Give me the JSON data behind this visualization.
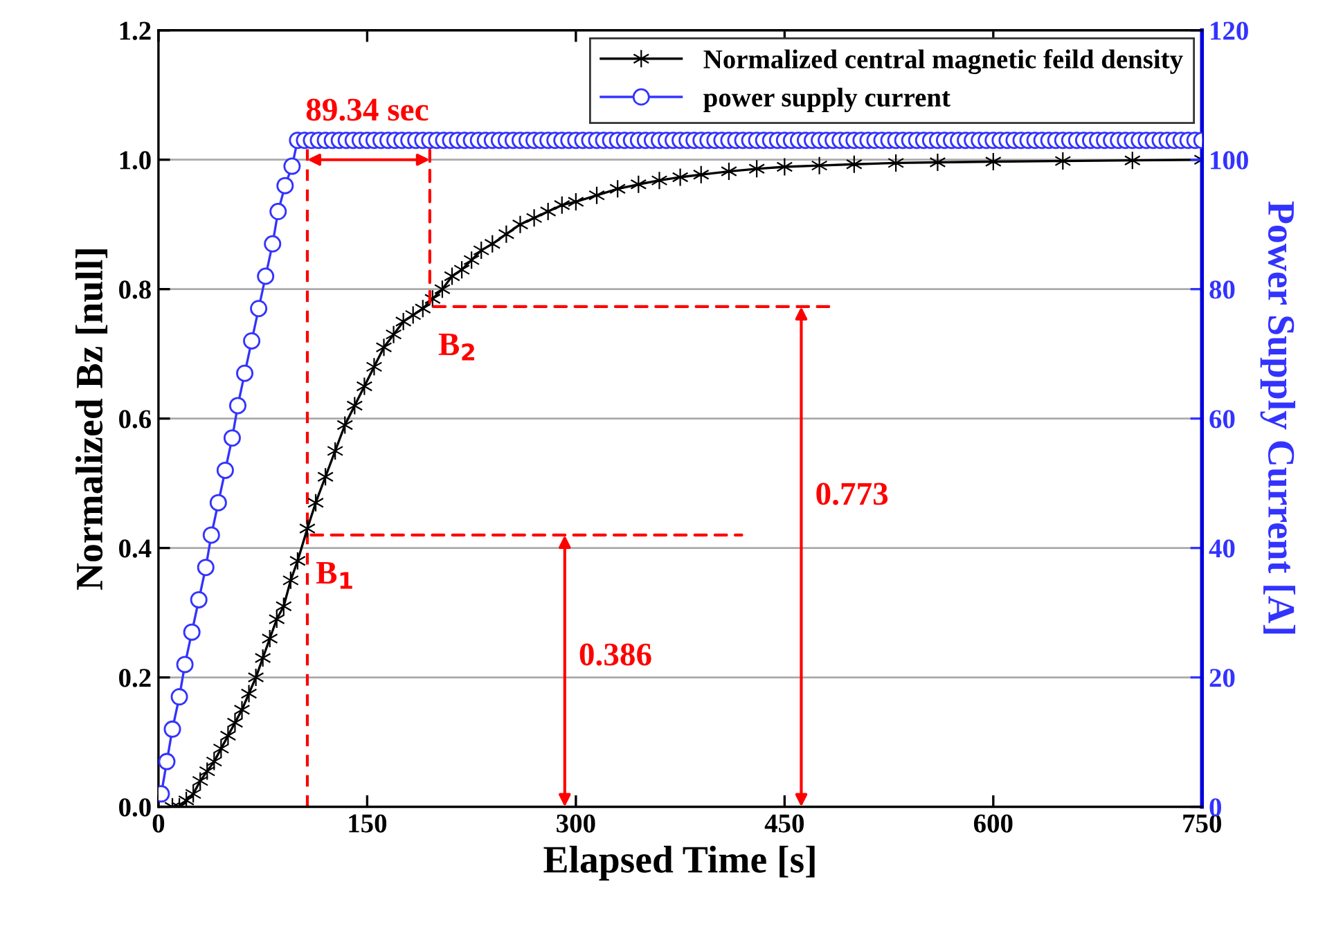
{
  "chart_data": {
    "type": "line",
    "xlabel": "Elapsed Time [s]",
    "ylabel": "Normalized Bz [null]",
    "y2label": "Power Supply Current [A]",
    "xlim": [
      0,
      750
    ],
    "xticks": [
      0,
      150,
      300,
      450,
      600,
      750
    ],
    "ylim": [
      0,
      1.2
    ],
    "yticks": [
      {
        "value": 0,
        "label": "0.0"
      },
      0.2,
      0.4,
      0.6,
      0.8,
      {
        "value": 1,
        "label": "1.0"
      },
      1.2
    ],
    "y2lim": [
      0,
      120
    ],
    "y2ticks": [
      0,
      20,
      40,
      60,
      80,
      100,
      120
    ],
    "grid": "y",
    "legend": "top right",
    "series": [
      {
        "name": "Normalized central magnetic feild density",
        "color": "#000000",
        "marker": "cross",
        "x": [
          10,
          15,
          20,
          25,
          30,
          35,
          40,
          45,
          50,
          55,
          60,
          65,
          70,
          75,
          80,
          85,
          90,
          95,
          100,
          107,
          113,
          120,
          127,
          134,
          141,
          148,
          155,
          162,
          169,
          176,
          183,
          190,
          197,
          204,
          211,
          218,
          225,
          232,
          240,
          250,
          260,
          270,
          280,
          290,
          300,
          315,
          330,
          345,
          360,
          375,
          390,
          410,
          430,
          450,
          475,
          500,
          530,
          560,
          600,
          650,
          700,
          750
        ],
        "values": [
          0.0,
          0.0,
          0.01,
          0.02,
          0.04,
          0.055,
          0.07,
          0.09,
          0.11,
          0.13,
          0.15,
          0.175,
          0.2,
          0.23,
          0.26,
          0.29,
          0.31,
          0.35,
          0.38,
          0.43,
          0.47,
          0.51,
          0.55,
          0.59,
          0.62,
          0.65,
          0.68,
          0.71,
          0.73,
          0.75,
          0.76,
          0.77,
          0.785,
          0.8,
          0.82,
          0.83,
          0.845,
          0.86,
          0.87,
          0.885,
          0.9,
          0.91,
          0.92,
          0.93,
          0.935,
          0.945,
          0.955,
          0.962,
          0.968,
          0.973,
          0.977,
          0.982,
          0.986,
          0.989,
          0.991,
          0.993,
          0.995,
          0.996,
          0.997,
          0.998,
          0.999,
          1.0
        ]
      },
      {
        "name": "power supply current",
        "color": "#3333ff",
        "marker": "circle",
        "axis": "y2",
        "x": [
          2,
          6,
          10,
          15,
          19,
          24,
          29,
          34,
          38,
          43,
          48,
          53,
          57,
          62,
          67,
          72,
          77,
          82,
          86,
          91,
          96,
          100,
          105,
          110,
          115,
          120,
          125,
          130,
          135,
          140,
          145,
          150,
          155,
          160,
          165,
          170,
          175,
          180,
          185,
          190,
          195,
          200,
          205,
          210,
          215,
          220,
          225,
          230,
          235,
          240,
          245,
          250,
          255,
          260,
          265,
          270,
          275,
          280,
          285,
          290,
          295,
          300,
          305,
          310,
          315,
          320,
          325,
          330,
          335,
          340,
          345,
          350,
          355,
          360,
          365,
          370,
          375,
          380,
          385,
          390,
          395,
          400,
          405,
          410,
          415,
          420,
          425,
          430,
          435,
          440,
          445,
          450,
          455,
          460,
          465,
          470,
          475,
          480,
          485,
          490,
          495,
          500,
          505,
          510,
          515,
          520,
          525,
          530,
          535,
          540,
          545,
          550,
          555,
          560,
          565,
          570,
          575,
          580,
          585,
          590,
          595,
          600,
          605,
          610,
          615,
          620,
          625,
          630,
          635,
          640,
          645,
          650,
          655,
          660,
          665,
          670,
          675,
          680,
          685,
          690,
          695,
          700,
          705,
          710,
          715,
          720,
          725,
          730,
          735,
          740,
          745,
          750
        ],
        "values": [
          2,
          7,
          12,
          17,
          22,
          27,
          32,
          37,
          42,
          47,
          52,
          57,
          62,
          67,
          72,
          77,
          82,
          87,
          92,
          96,
          99,
          103,
          103,
          103,
          103,
          103,
          103,
          103,
          103,
          103,
          103,
          103,
          103,
          103,
          103,
          103,
          103,
          103,
          103,
          103,
          103,
          103,
          103,
          103,
          103,
          103,
          103,
          103,
          103,
          103,
          103,
          103,
          103,
          103,
          103,
          103,
          103,
          103,
          103,
          103,
          103,
          103,
          103,
          103,
          103,
          103,
          103,
          103,
          103,
          103,
          103,
          103,
          103,
          103,
          103,
          103,
          103,
          103,
          103,
          103,
          103,
          103,
          103,
          103,
          103,
          103,
          103,
          103,
          103,
          103,
          103,
          103,
          103,
          103,
          103,
          103,
          103,
          103,
          103,
          103,
          103,
          103,
          103,
          103,
          103,
          103,
          103,
          103,
          103,
          103,
          103,
          103,
          103,
          103,
          103,
          103,
          103,
          103,
          103,
          103,
          103,
          103,
          103,
          103,
          103,
          103,
          103,
          103,
          103,
          103,
          103,
          103,
          103,
          103,
          103,
          103,
          103,
          103,
          103,
          103,
          103,
          103,
          103,
          103,
          103,
          103,
          103,
          103,
          103,
          103,
          103,
          103
        ]
      }
    ],
    "annotations": [
      {
        "text": "89.34 sec",
        "x": 150,
        "y": 1.05
      },
      {
        "text": "B$_{1}$",
        "x": 107,
        "y": 0.42
      },
      {
        "text": "B$_{2}$",
        "x": 195,
        "y": 0.773
      },
      "0.386",
      "0.773"
    ],
    "ref_lines": [
      {
        "axis": "x",
        "value": 107,
        "color": "#ff0000",
        "line_style": "dashed"
      }
    ]
  }
}
